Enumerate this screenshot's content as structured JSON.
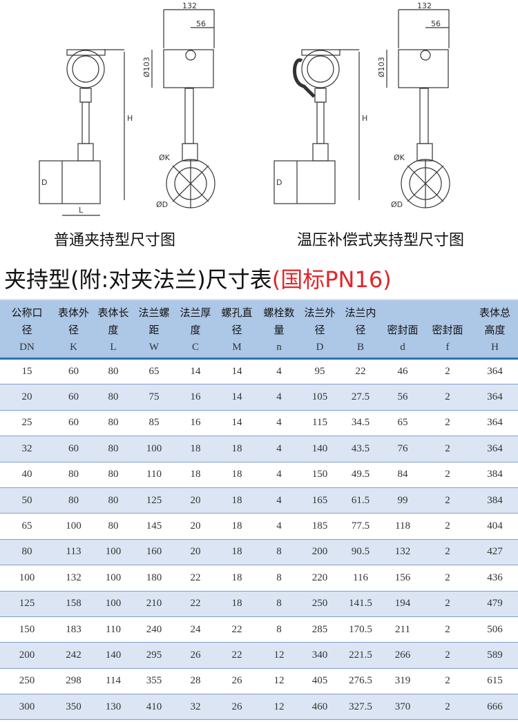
{
  "drawings": [
    {
      "caption": "普通夹持型尺寸图",
      "dims": [
        "132",
        "56",
        "Ø103",
        "H",
        "D",
        "L",
        "ØK",
        "ØD"
      ]
    },
    {
      "caption": "温压补偿式夹持型尺寸图",
      "dims": [
        "132",
        "56",
        "Ø103",
        "H",
        "D",
        "ØK",
        "ØD"
      ]
    }
  ],
  "title": {
    "main": "夹持型(附:对夹法兰)尺寸表",
    "standard": "(国标PN16)"
  },
  "table": {
    "columns": [
      {
        "name": "公称口径",
        "sym": "DN"
      },
      {
        "name": "表体外径",
        "sym": "K"
      },
      {
        "name": "表体长度",
        "sym": "L"
      },
      {
        "name": "法兰螺距",
        "sym": "W"
      },
      {
        "name": "法兰厚度",
        "sym": "C"
      },
      {
        "name": "螺孔直径",
        "sym": "M"
      },
      {
        "name": "螺栓数量",
        "sym": "n"
      },
      {
        "name": "法兰外径",
        "sym": "D"
      },
      {
        "name": "法兰内径",
        "sym": "B"
      },
      {
        "name": "密封面",
        "sym": "d"
      },
      {
        "name": "密封面",
        "sym": "f"
      },
      {
        "name": "表体总高度",
        "sym": "H"
      }
    ],
    "rows": [
      [
        "15",
        "60",
        "80",
        "65",
        "14",
        "14",
        "4",
        "95",
        "22",
        "46",
        "2",
        "364"
      ],
      [
        "20",
        "60",
        "80",
        "75",
        "16",
        "14",
        "4",
        "105",
        "27.5",
        "56",
        "2",
        "364"
      ],
      [
        "25",
        "60",
        "80",
        "85",
        "16",
        "14",
        "4",
        "115",
        "34.5",
        "65",
        "2",
        "364"
      ],
      [
        "32",
        "60",
        "80",
        "100",
        "18",
        "18",
        "4",
        "140",
        "43.5",
        "76",
        "2",
        "364"
      ],
      [
        "40",
        "80",
        "80",
        "110",
        "18",
        "18",
        "4",
        "150",
        "49.5",
        "84",
        "2",
        "384"
      ],
      [
        "50",
        "80",
        "80",
        "125",
        "20",
        "18",
        "4",
        "165",
        "61.5",
        "99",
        "2",
        "384"
      ],
      [
        "65",
        "100",
        "80",
        "145",
        "20",
        "18",
        "4",
        "185",
        "77.5",
        "118",
        "2",
        "404"
      ],
      [
        "80",
        "113",
        "100",
        "160",
        "20",
        "18",
        "8",
        "200",
        "90.5",
        "132",
        "2",
        "427"
      ],
      [
        "100",
        "132",
        "100",
        "180",
        "22",
        "18",
        "8",
        "220",
        "116",
        "156",
        "2",
        "436"
      ],
      [
        "125",
        "158",
        "100",
        "210",
        "22",
        "18",
        "8",
        "250",
        "141.5",
        "194",
        "2",
        "479"
      ],
      [
        "150",
        "183",
        "110",
        "240",
        "24",
        "22",
        "8",
        "285",
        "170.5",
        "211",
        "2",
        "506"
      ],
      [
        "200",
        "242",
        "140",
        "295",
        "26",
        "22",
        "12",
        "340",
        "221.5",
        "266",
        "2",
        "589"
      ],
      [
        "250",
        "298",
        "114",
        "355",
        "28",
        "26",
        "12",
        "405",
        "276.5",
        "319",
        "2",
        "615"
      ],
      [
        "300",
        "350",
        "130",
        "410",
        "32",
        "26",
        "12",
        "460",
        "327.5",
        "370",
        "2",
        "666"
      ]
    ]
  }
}
